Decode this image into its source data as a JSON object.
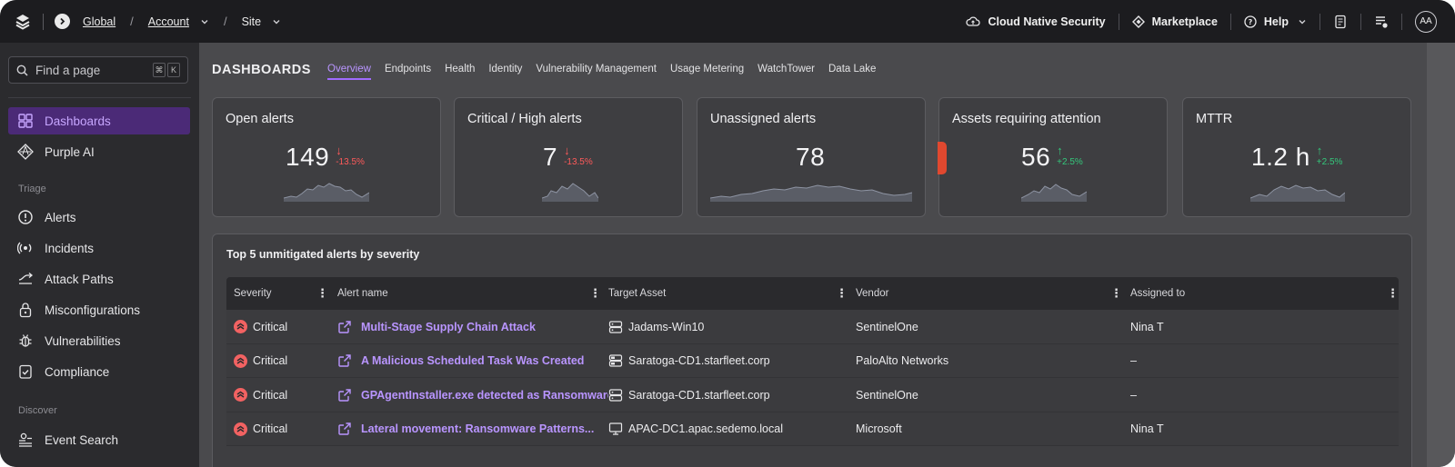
{
  "topbar": {
    "breadcrumbs": [
      "Global",
      "Account",
      "Site"
    ],
    "right_items": {
      "cloud": "Cloud Native Security",
      "marketplace": "Marketplace",
      "help": "Help"
    },
    "avatar": "AA"
  },
  "sidebar": {
    "search_placeholder": "Find a page",
    "shortcut": [
      "⌘",
      "K"
    ],
    "items": [
      {
        "label": "Dashboards",
        "icon": "grid-icon",
        "active": true
      },
      {
        "label": "Purple AI",
        "icon": "purple-ai-icon"
      }
    ],
    "sections": [
      {
        "title": "Triage",
        "items": [
          {
            "label": "Alerts",
            "icon": "alert-circle-icon"
          },
          {
            "label": "Incidents",
            "icon": "incident-icon"
          },
          {
            "label": "Attack Paths",
            "icon": "path-icon"
          },
          {
            "label": "Misconfigurations",
            "icon": "lock-icon"
          },
          {
            "label": "Vulnerabilities",
            "icon": "bug-icon"
          },
          {
            "label": "Compliance",
            "icon": "compliance-icon"
          }
        ]
      },
      {
        "title": "Discover",
        "items": [
          {
            "label": "Event Search",
            "icon": "event-search-icon"
          }
        ]
      }
    ]
  },
  "main": {
    "title": "DASHBOARDS",
    "tabs": [
      {
        "label": "Overview",
        "active": true
      },
      {
        "label": "Endpoints"
      },
      {
        "label": "Health"
      },
      {
        "label": "Identity"
      },
      {
        "label": "Vulnerability Management"
      },
      {
        "label": "Usage Metering"
      },
      {
        "label": "WatchTower"
      },
      {
        "label": "Data Lake"
      }
    ],
    "cards": [
      {
        "title": "Open alerts",
        "value": "149",
        "trend": "down",
        "arrow": "↓",
        "delta": "-13.5%"
      },
      {
        "title": "Critical / High alerts",
        "value": "7",
        "trend": "down",
        "arrow": "↓",
        "delta": "-13.5%"
      },
      {
        "title": "Unassigned alerts",
        "value": "78",
        "trend": "",
        "arrow": "",
        "delta": ""
      },
      {
        "title": "Assets requiring attention",
        "value": "56",
        "trend": "up",
        "arrow": "↑",
        "delta": "+2.5%"
      },
      {
        "title": "MTTR",
        "value": "1.2 h",
        "trend": "up",
        "arrow": "↑",
        "delta": "+2.5%"
      }
    ],
    "panel": {
      "title": "Top 5 unmitigated alerts by severity",
      "columns": [
        "Severity",
        "Alert name",
        "Target Asset",
        "Vendor",
        "Assigned to"
      ],
      "rows": [
        {
          "severity": "Critical",
          "alert": "Multi-Stage Supply Chain Attack",
          "asset": "Jadams-Win10",
          "asset_icon": "server-icon",
          "vendor": "SentinelOne",
          "assigned": "Nina T"
        },
        {
          "severity": "Critical",
          "alert": "A Malicious Scheduled Task Was Created",
          "asset": "Saratoga-CD1.starfleet.corp",
          "asset_icon": "server-alert-icon",
          "vendor": "PaloAlto Networks",
          "assigned": "–"
        },
        {
          "severity": "Critical",
          "alert": "GPAgentInstaller.exe detected as Ransomware",
          "asset": "Saratoga-CD1.starfleet.corp",
          "asset_icon": "server-icon",
          "vendor": "SentinelOne",
          "assigned": "–"
        },
        {
          "severity": "Critical",
          "alert": "Lateral movement: Ransomware Patterns...",
          "asset": "APAC-DC1.apac.sedemo.local",
          "asset_icon": "monitor-icon",
          "vendor": "Microsoft",
          "assigned": "Nina T"
        }
      ]
    }
  },
  "colors": {
    "accent": "#a06bff",
    "critical": "#f26262",
    "trend_down": "#ff5a5a",
    "trend_up": "#34c77b",
    "flag": "#e0482f"
  }
}
